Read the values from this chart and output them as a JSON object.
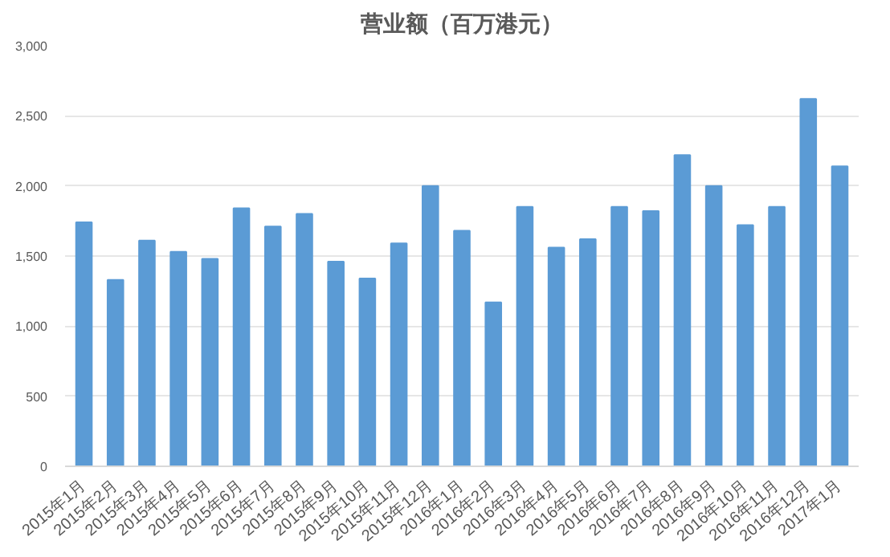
{
  "chart_data": {
    "type": "bar",
    "title": "营业额（百万港元）",
    "categories": [
      "2015年1月",
      "2015年2月",
      "2015年3月",
      "2015年4月",
      "2015年5月",
      "2015年6月",
      "2015年7月",
      "2015年8月",
      "2015年9月",
      "2015年10月",
      "2015年11月",
      "2015年12月",
      "2016年1月",
      "2016年2月",
      "2016年3月",
      "2016年4月",
      "2016年5月",
      "2016年6月",
      "2016年7月",
      "2016年8月",
      "2016年9月",
      "2016年10月",
      "2016年11月",
      "2016年12月",
      "2017年1月"
    ],
    "values": [
      1740,
      1330,
      1610,
      1530,
      1480,
      1840,
      1710,
      1800,
      1460,
      1340,
      1590,
      2000,
      1680,
      1170,
      1850,
      1560,
      1620,
      1850,
      1820,
      2220,
      2000,
      1720,
      1850,
      2620,
      2140
    ],
    "color": "#5b9bd5",
    "ylim": [
      0,
      3000
    ],
    "yticks": [
      {
        "value": 0,
        "label": "0"
      },
      {
        "value": 500,
        "label": "500"
      },
      {
        "value": 1000,
        "label": "1,000"
      },
      {
        "value": 1500,
        "label": "1,500"
      },
      {
        "value": 2000,
        "label": "2,000"
      },
      {
        "value": 2500,
        "label": "2,500"
      },
      {
        "value": 3000,
        "label": "3,000"
      }
    ],
    "grid": "y"
  }
}
